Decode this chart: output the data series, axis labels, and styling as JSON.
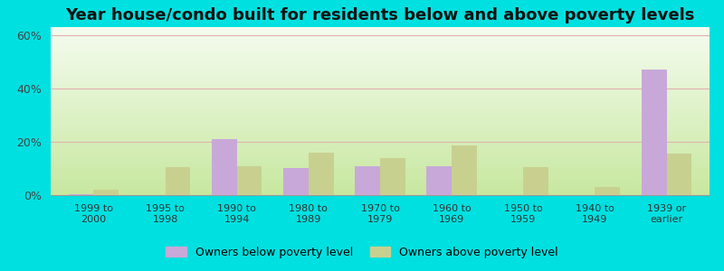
{
  "title": "Year house/condo built for residents below and above poverty levels",
  "categories": [
    "1999 to\n2000",
    "1995 to\n1998",
    "1990 to\n1994",
    "1980 to\n1989",
    "1970 to\n1979",
    "1960 to\n1969",
    "1950 to\n1959",
    "1940 to\n1949",
    "1939 or\nearlier"
  ],
  "below_poverty": [
    0.5,
    0.0,
    21.0,
    10.0,
    11.0,
    11.0,
    0.0,
    0.0,
    47.0
  ],
  "above_poverty": [
    2.0,
    10.5,
    11.0,
    16.0,
    14.0,
    18.5,
    10.5,
    3.0,
    15.5
  ],
  "below_color": "#c8a8d8",
  "above_color": "#c8d090",
  "ylim": [
    0,
    63
  ],
  "yticks": [
    0,
    20,
    40,
    60
  ],
  "ytick_labels": [
    "0%",
    "20%",
    "40%",
    "60%"
  ],
  "outer_bg": "#00e0e0",
  "plot_bg": "#edf7e0",
  "legend_below": "Owners below poverty level",
  "legend_above": "Owners above poverty level",
  "title_fontsize": 13,
  "bar_width": 0.35
}
